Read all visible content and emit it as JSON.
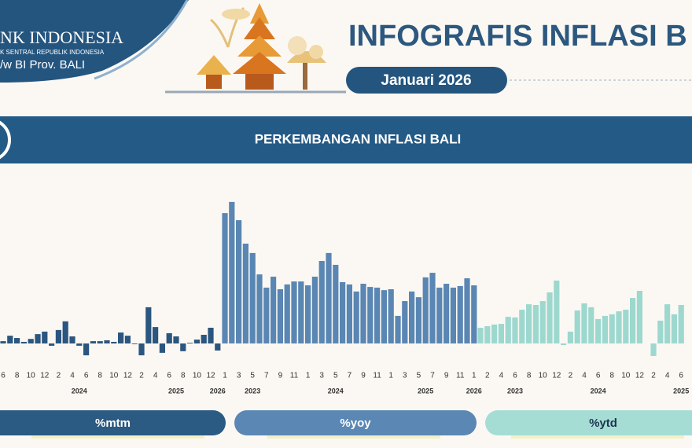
{
  "header": {
    "org_name": "NK INDONESIA",
    "org_sub": "K SENTRAL REPUBLIK INDONESIA",
    "org_office": "/w BI Prov. BALI",
    "title": "INFOGRAFIS INFLASI B",
    "period": "Januari 2026"
  },
  "section_title": "PERKEMBANGAN INFLASI BALI",
  "chart_data": [
    {
      "type": "bar",
      "title": "%mtm",
      "color": "#2b567f",
      "categories": [
        "6",
        null,
        "8",
        null,
        "10",
        null,
        "12",
        null,
        "2",
        null,
        "4",
        null,
        "6",
        null,
        "8",
        null,
        "10",
        null,
        "12",
        null,
        "2",
        null,
        "4",
        null,
        "6",
        null,
        "8",
        null,
        "10",
        null,
        "12",
        null
      ],
      "years": [
        null,
        null,
        null,
        null,
        null,
        null,
        null,
        null,
        null,
        null,
        null,
        "2024",
        null,
        null,
        null,
        null,
        null,
        null,
        null,
        null,
        null,
        null,
        null,
        null,
        null,
        "2025",
        null,
        null,
        null,
        null,
        null,
        "2026"
      ],
      "values": [
        0.1,
        0.34,
        0.24,
        0.07,
        0.2,
        0.41,
        0.52,
        -0.1,
        0.59,
        0.97,
        0.31,
        -0.1,
        -0.52,
        0.1,
        0.1,
        0.14,
        0.07,
        0.48,
        0.34,
        -0.03,
        -0.52,
        1.59,
        0.72,
        -0.41,
        0.45,
        0.31,
        -0.34,
        0.03,
        0.17,
        0.38,
        0.69,
        -0.31
      ]
    },
    {
      "type": "bar",
      "title": "%yoy",
      "color": "#5a86b3",
      "categories": [
        "1",
        null,
        "3",
        null,
        "5",
        null,
        "7",
        null,
        "9",
        null,
        "11",
        null,
        "1",
        null,
        "3",
        null,
        "5",
        null,
        "7",
        null,
        "9",
        null,
        "11",
        null,
        "1",
        null,
        "3",
        null,
        "5",
        null,
        "7",
        null,
        "9",
        null,
        "11",
        null,
        "1"
      ],
      "years": [
        null,
        null,
        null,
        null,
        "2023",
        null,
        null,
        null,
        null,
        null,
        null,
        null,
        null,
        null,
        null,
        null,
        "2024",
        null,
        null,
        null,
        null,
        null,
        null,
        null,
        null,
        null,
        null,
        null,
        null,
        "2025",
        null,
        null,
        null,
        null,
        null,
        null,
        "2026"
      ],
      "values": [
        5.72,
        6.21,
        5.41,
        4.38,
        3.97,
        3.03,
        2.45,
        2.93,
        2.38,
        2.59,
        2.72,
        2.72,
        2.55,
        2.93,
        3.62,
        3.97,
        3.45,
        2.69,
        2.59,
        2.28,
        2.62,
        2.48,
        2.45,
        2.34,
        2.38,
        1.21,
        1.86,
        2.28,
        2.03,
        2.9,
        3.1,
        2.45,
        2.62,
        2.45,
        2.52,
        2.86,
        2.55
      ]
    },
    {
      "type": "bar",
      "title": "%ytd",
      "color": "#9dd8cf",
      "categories": [
        null,
        "2",
        null,
        "4",
        null,
        "6",
        null,
        "8",
        null,
        "10",
        null,
        "12",
        null,
        "2",
        null,
        "4",
        null,
        "6",
        null,
        "8",
        null,
        "10",
        null,
        "12",
        null,
        "2",
        null,
        "4",
        null,
        "6"
      ],
      "years": [
        null,
        null,
        null,
        null,
        null,
        "2023",
        null,
        null,
        null,
        null,
        null,
        null,
        null,
        null,
        null,
        null,
        null,
        "2024",
        null,
        null,
        null,
        null,
        null,
        null,
        null,
        null,
        null,
        null,
        null,
        "2025"
      ],
      "values": [
        0.69,
        0.76,
        0.83,
        0.86,
        1.17,
        1.14,
        1.48,
        1.72,
        1.69,
        1.86,
        2.24,
        2.76,
        -0.07,
        0.52,
        1.45,
        1.76,
        1.59,
        1.07,
        1.21,
        1.28,
        1.41,
        1.48,
        2.0,
        2.31,
        0.0,
        -0.55,
        1.0,
        1.72,
        1.28,
        1.69
      ]
    }
  ]
}
